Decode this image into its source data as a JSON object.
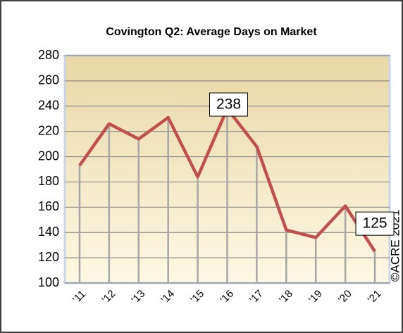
{
  "chart_data": {
    "type": "line",
    "title": "Covington Q2: Average Days on Market",
    "categories": [
      "'11",
      "'12",
      "'13",
      "'14",
      "'15",
      "'16",
      "'17",
      "'18",
      "'19",
      "'20",
      "'21"
    ],
    "series": [
      {
        "name": "Average Days on Market",
        "color": "#c0504d",
        "values": [
          193,
          226,
          214,
          231,
          184,
          238,
          208,
          142,
          136,
          161,
          125
        ]
      }
    ],
    "labeled_points": [
      5,
      10
    ],
    "ylim": [
      100,
      280
    ],
    "yticks": [
      100,
      120,
      140,
      160,
      180,
      200,
      220,
      240,
      260,
      280
    ],
    "grid": true,
    "annotation": "©ACRE 2021"
  }
}
